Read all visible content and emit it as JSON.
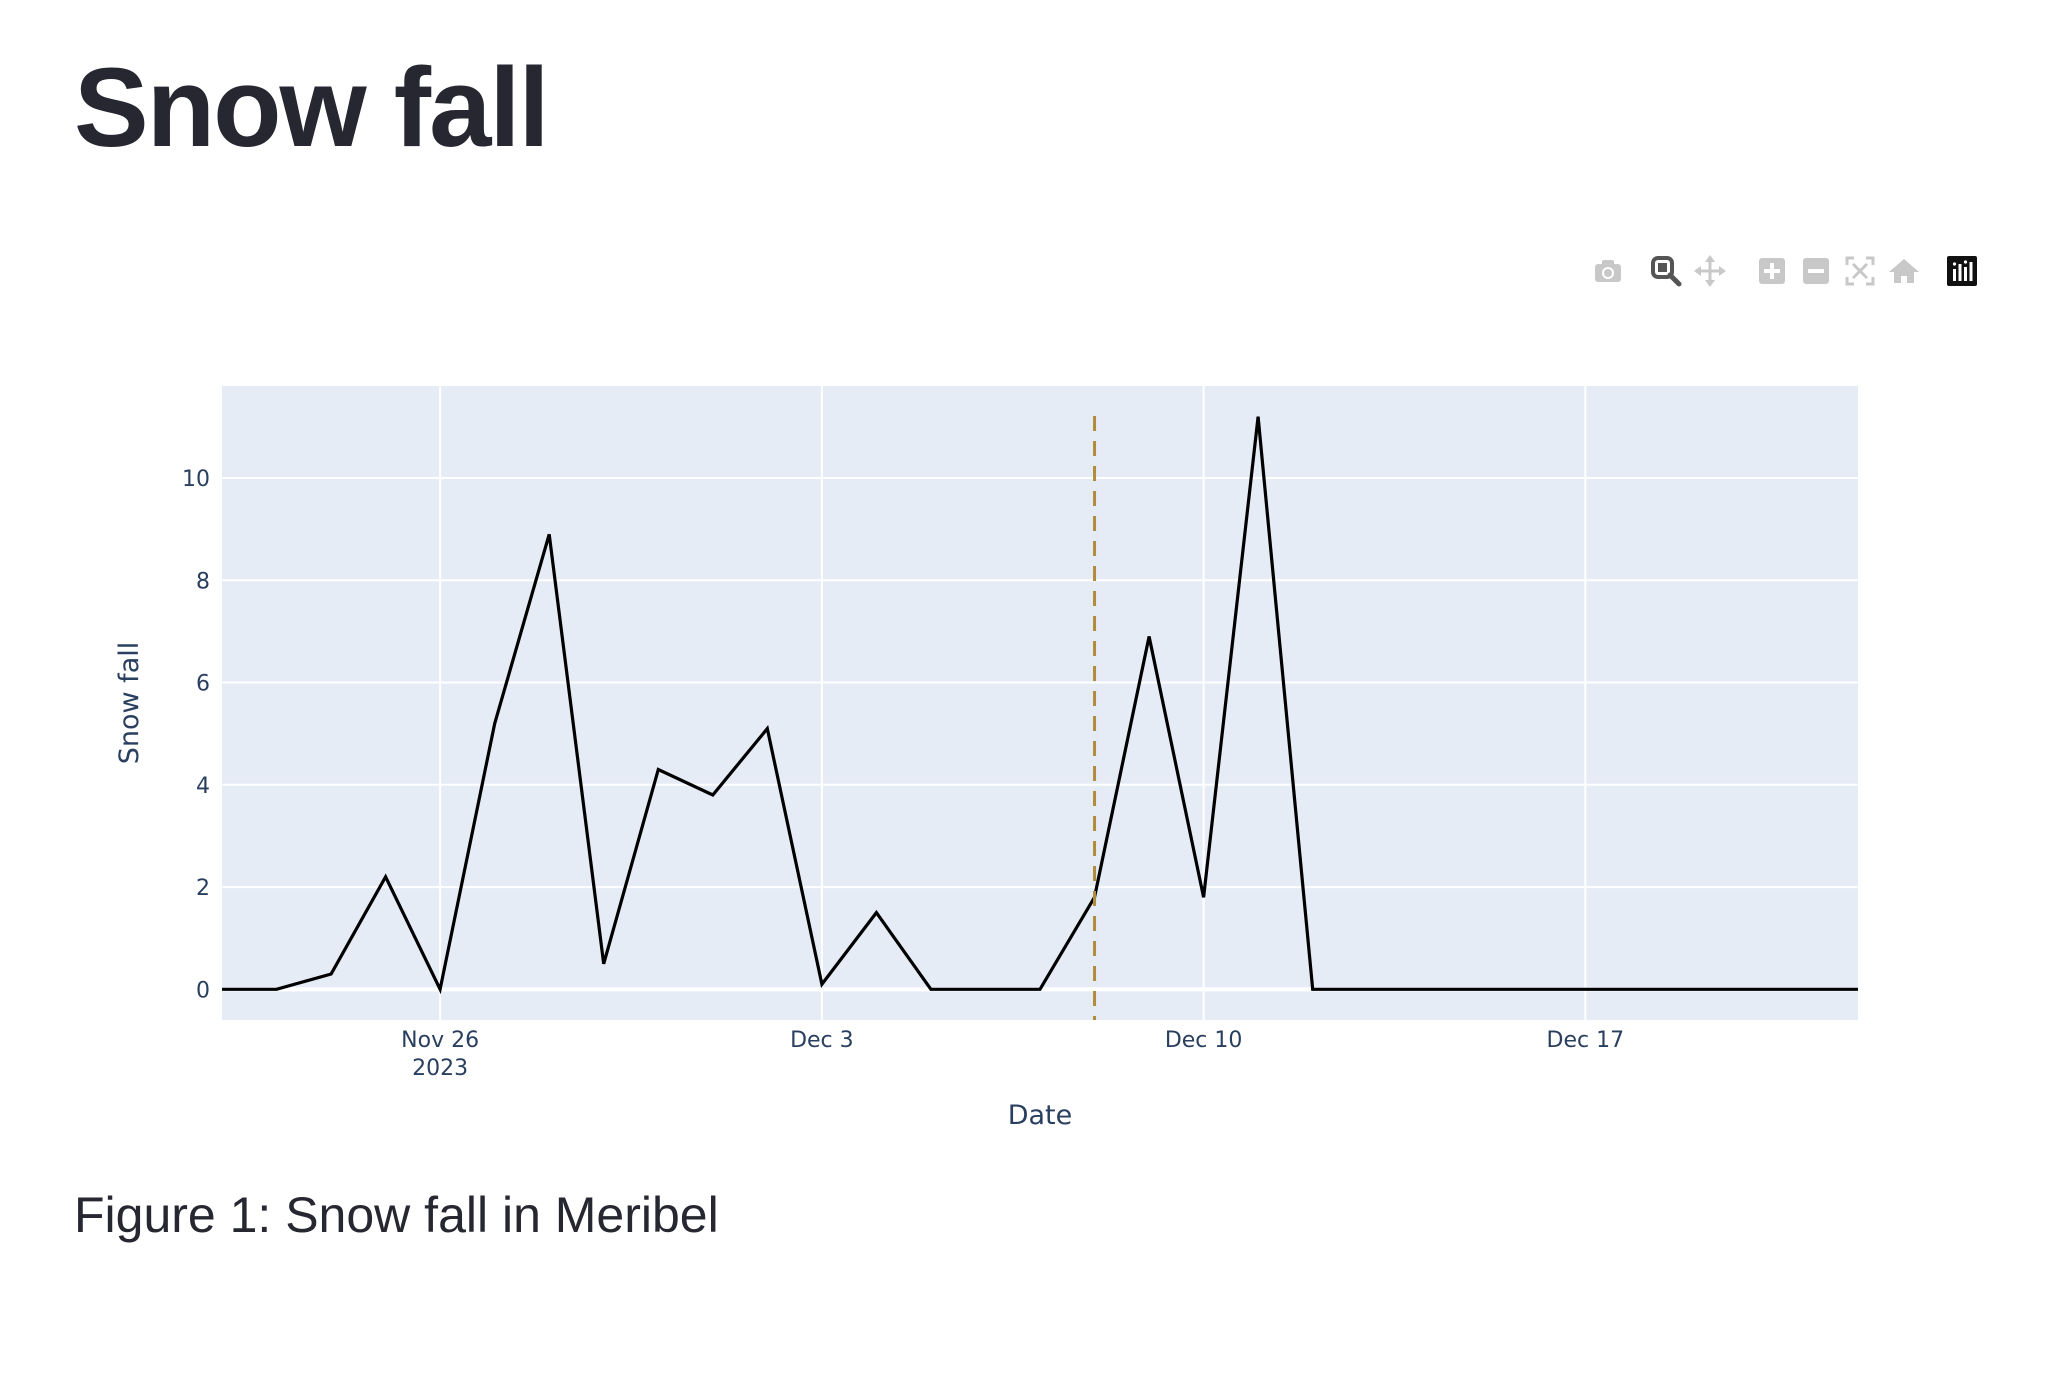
{
  "page": {
    "title": "Snow fall",
    "caption": "Figure 1: Snow fall in Meribel"
  },
  "modebar": {
    "buttons": [
      {
        "name": "camera-icon",
        "label": "Download plot as a png"
      },
      {
        "name": "zoom-icon",
        "label": "Zoom"
      },
      {
        "name": "pan-icon",
        "label": "Pan"
      },
      {
        "name": "zoom-in-icon",
        "label": "Zoom in"
      },
      {
        "name": "zoom-out-icon",
        "label": "Zoom out"
      },
      {
        "name": "autoscale-icon",
        "label": "Autoscale"
      },
      {
        "name": "reset-axes-icon",
        "label": "Reset axes"
      },
      {
        "name": "plotly-logo-icon",
        "label": "Produced with Plotly"
      }
    ],
    "active_button": "zoom-icon"
  },
  "chart_data": {
    "type": "line",
    "title": "",
    "xlabel": "Date",
    "ylabel": "Snow fall",
    "x": [
      "2023-11-22",
      "2023-11-23",
      "2023-11-24",
      "2023-11-25",
      "2023-11-26",
      "2023-11-27",
      "2023-11-28",
      "2023-11-29",
      "2023-11-30",
      "2023-12-01",
      "2023-12-02",
      "2023-12-03",
      "2023-12-04",
      "2023-12-05",
      "2023-12-06",
      "2023-12-07",
      "2023-12-08",
      "2023-12-09",
      "2023-12-10",
      "2023-12-11",
      "2023-12-12",
      "2023-12-13",
      "2023-12-14",
      "2023-12-15",
      "2023-12-16",
      "2023-12-17",
      "2023-12-18",
      "2023-12-19",
      "2023-12-20",
      "2023-12-21",
      "2023-12-22"
    ],
    "series": [
      {
        "values": [
          0,
          0,
          0.3,
          2.2,
          0,
          5.2,
          8.9,
          0.5,
          4.3,
          3.8,
          5.1,
          0.1,
          1.5,
          0,
          0,
          0,
          1.8,
          6.9,
          1.8,
          11.2,
          0,
          0,
          0,
          0,
          0,
          0,
          0,
          0,
          0,
          0,
          0
        ],
        "color": "#000000"
      }
    ],
    "vline": {
      "x": "2023-12-08",
      "color": "#b08d3c",
      "style": "dashed"
    },
    "xlim": [
      "2023-11-22",
      "2023-12-22"
    ],
    "ylim": [
      -0.6,
      11.8
    ],
    "xticks": [
      {
        "x": "2023-11-26",
        "label": "Nov 26",
        "sublabel": "2023"
      },
      {
        "x": "2023-12-03",
        "label": "Dec 3",
        "sublabel": ""
      },
      {
        "x": "2023-12-10",
        "label": "Dec 10",
        "sublabel": ""
      },
      {
        "x": "2023-12-17",
        "label": "Dec 17",
        "sublabel": ""
      }
    ],
    "yticks": [
      0,
      2,
      4,
      6,
      8,
      10
    ],
    "grid": true,
    "legend": "none",
    "colors": {
      "plot_bg": "#e5ecf6",
      "grid": "#ffffff",
      "axis_text": "#2a3f5f"
    }
  }
}
